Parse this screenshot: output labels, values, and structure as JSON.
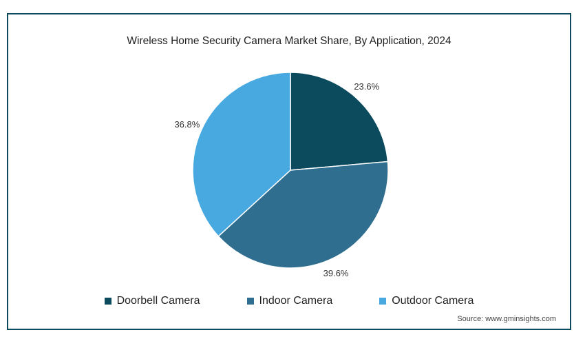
{
  "chart_data": {
    "type": "pie",
    "title": "Wireless Home Security Camera Market Share, By Application, 2024",
    "categories": [
      "Doorbell Camera",
      "Indoor Camera",
      "Outdoor Camera"
    ],
    "values": [
      23.6,
      39.6,
      36.8
    ],
    "labels": [
      "23.6%",
      "39.6%",
      "36.8%"
    ],
    "colors": [
      "#0c4a5e",
      "#2f6e8f",
      "#47a9e0"
    ],
    "legend_position": "bottom",
    "source": "Source: www.gminsights.com"
  }
}
